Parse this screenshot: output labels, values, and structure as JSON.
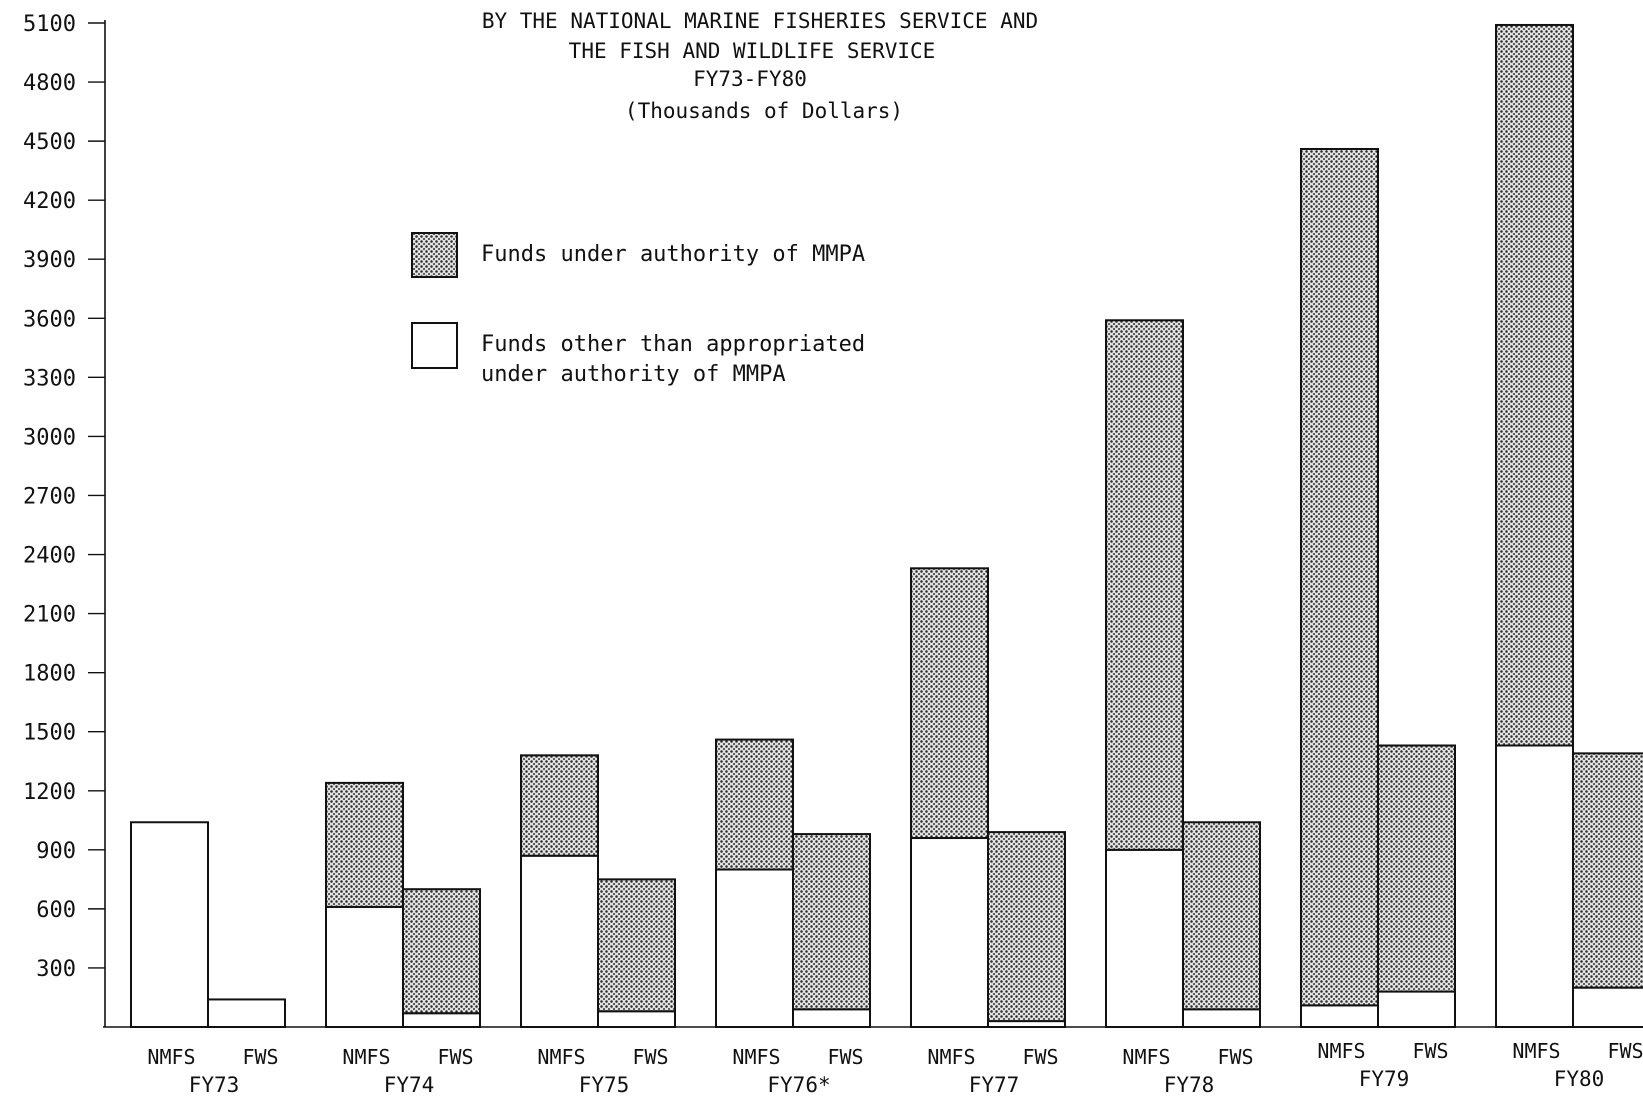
{
  "title_lines": [
    "BY THE NATIONAL MARINE FISHERIES SERVICE AND",
    "THE FISH AND WILDLIFE SERVICE",
    "FY73-FY80",
    "(Thousands of Dollars)"
  ],
  "legend": [
    {
      "label_lines": [
        "Funds under authority of MMPA"
      ],
      "swatch": "dotted"
    },
    {
      "label_lines": [
        "Funds other than appropriated",
        "under authority of MMPA"
      ],
      "swatch": "plain"
    }
  ],
  "chart_data": {
    "type": "bar",
    "stacked": true,
    "unit": "(Thousands of Dollars)",
    "ylim": [
      0,
      5100
    ],
    "yticks": [
      300,
      600,
      900,
      1200,
      1500,
      1800,
      2100,
      2400,
      2700,
      3000,
      3300,
      3600,
      3900,
      4200,
      4500,
      4800,
      5100
    ],
    "groups": [
      "FY73",
      "FY74",
      "FY75",
      "FY76*",
      "FY77",
      "FY78",
      "FY79",
      "FY80"
    ],
    "agencies": [
      "NMFS",
      "FWS"
    ],
    "categories": [
      "FY73 NMFS",
      "FY73 FWS",
      "FY74 NMFS",
      "FY74 FWS",
      "FY75 NMFS",
      "FY75 FWS",
      "FY76* NMFS",
      "FY76* FWS",
      "FY77 NMFS",
      "FY77 FWS",
      "FY78 NMFS",
      "FY78 FWS",
      "FY79 NMFS",
      "FY79 FWS",
      "FY80 NMFS",
      "FY80 FWS"
    ],
    "series": [
      {
        "name": "Funds other than appropriated under authority of MMPA",
        "pattern": "plain",
        "values": [
          1040,
          140,
          610,
          70,
          870,
          80,
          800,
          90,
          960,
          30,
          900,
          90,
          110,
          180,
          1430,
          200
        ]
      },
      {
        "name": "Funds under authority of MMPA",
        "pattern": "dotted",
        "values": [
          0,
          0,
          630,
          630,
          510,
          670,
          660,
          890,
          1370,
          960,
          2690,
          950,
          4350,
          1250,
          3660,
          1190
        ]
      }
    ],
    "grid": false,
    "legend_position": "upper-left-center"
  }
}
